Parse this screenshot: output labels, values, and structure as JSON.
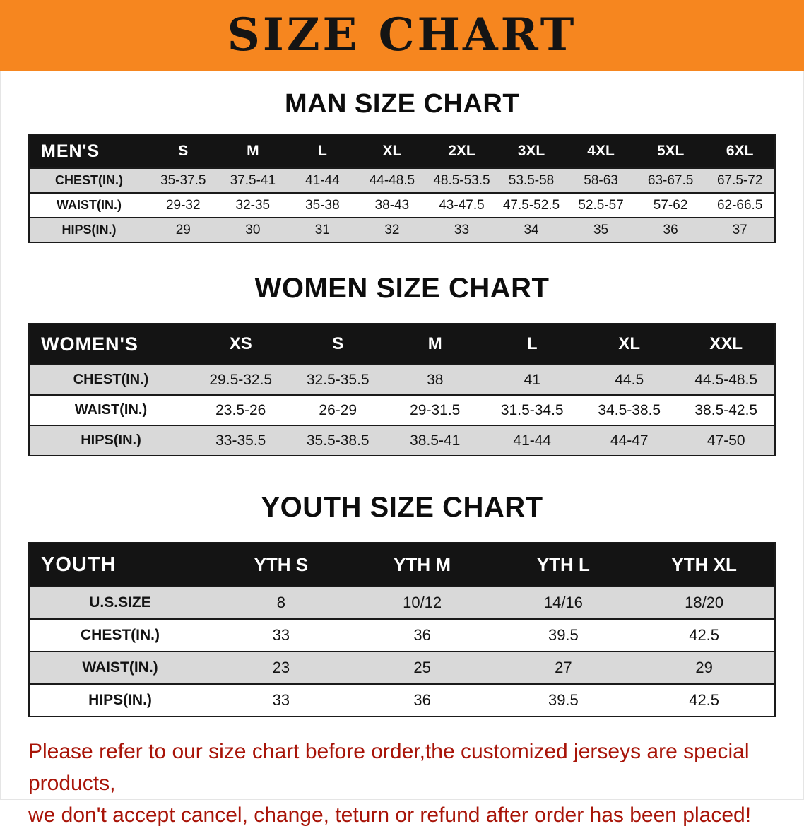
{
  "banner": {
    "title": "SIZE CHART"
  },
  "sections": [
    {
      "title": "MAN SIZE CHART",
      "table": {
        "header": [
          "MEN'S",
          "S",
          "M",
          "L",
          "XL",
          "2XL",
          "3XL",
          "4XL",
          "5XL",
          "6XL"
        ],
        "rows": [
          [
            "CHEST(IN.)",
            "35-37.5",
            "37.5-41",
            "41-44",
            "44-48.5",
            "48.5-53.5",
            "53.5-58",
            "58-63",
            "63-67.5",
            "67.5-72"
          ],
          [
            "WAIST(IN.)",
            "29-32",
            "32-35",
            "35-38",
            "38-43",
            "43-47.5",
            "47.5-52.5",
            "52.5-57",
            "57-62",
            "62-66.5"
          ],
          [
            "HIPS(IN.)",
            "29",
            "30",
            "31",
            "32",
            "33",
            "34",
            "35",
            "36",
            "37"
          ]
        ]
      }
    },
    {
      "title": "WOMEN SIZE CHART",
      "table": {
        "header": [
          "WOMEN'S",
          "XS",
          "S",
          "M",
          "L",
          "XL",
          "XXL"
        ],
        "rows": [
          [
            "CHEST(IN.)",
            "29.5-32.5",
            "32.5-35.5",
            "38",
            "41",
            "44.5",
            "44.5-48.5"
          ],
          [
            "WAIST(IN.)",
            "23.5-26",
            "26-29",
            "29-31.5",
            "31.5-34.5",
            "34.5-38.5",
            "38.5-42.5"
          ],
          [
            "HIPS(IN.)",
            "33-35.5",
            "35.5-38.5",
            "38.5-41",
            "41-44",
            "44-47",
            "47-50"
          ]
        ]
      }
    },
    {
      "title": "YOUTH SIZE CHART",
      "table": {
        "header": [
          "YOUTH",
          "YTH S",
          "YTH M",
          "YTH L",
          "YTH XL"
        ],
        "rows": [
          [
            "U.S.SIZE",
            "8",
            "10/12",
            "14/16",
            "18/20"
          ],
          [
            "CHEST(IN.)",
            "33",
            "36",
            "39.5",
            "42.5"
          ],
          [
            "WAIST(IN.)",
            "23",
            "25",
            "27",
            "29"
          ],
          [
            "HIPS(IN.)",
            "33",
            "36",
            "39.5",
            "42.5"
          ]
        ]
      }
    }
  ],
  "notice": {
    "lines": [
      "Please refer to our size chart before order,the customized jerseys are special products,",
      "we don't accept cancel, change, teturn or refund after order has been placed!"
    ]
  },
  "colors": {
    "banner_bg": "#F6861F",
    "banner_text": "#141414",
    "table_header_bg": "#141414",
    "table_header_text": "#FFFFFF",
    "row_alt_bg": "#D9D9D9",
    "notice_text": "#A81408"
  }
}
